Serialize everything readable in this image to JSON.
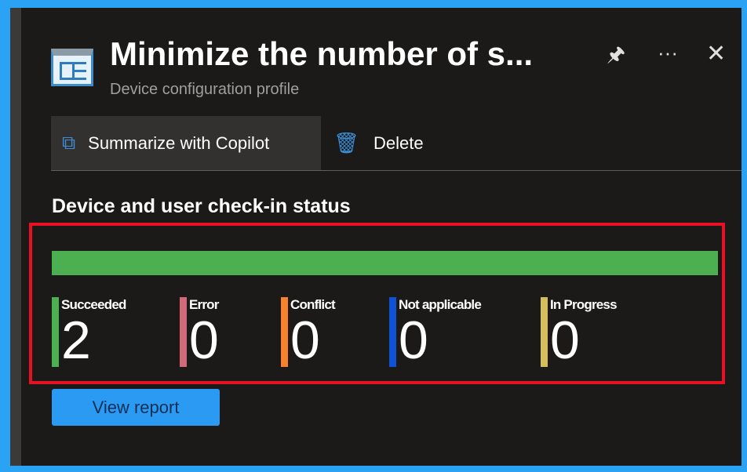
{
  "header": {
    "title": "Minimize the number of s...",
    "subtitle": "Device configuration profile"
  },
  "toolbar": {
    "copilot_label": "Summarize with Copilot",
    "delete_label": "Delete"
  },
  "section_title": "Device and user check-in status",
  "progress": {
    "succeeded_fraction": 1.0,
    "color": "#4caf50"
  },
  "stats": [
    {
      "label": "Succeeded",
      "value": "2",
      "color": "#4caf50"
    },
    {
      "label": "Error",
      "value": "0",
      "color": "#d16b7a"
    },
    {
      "label": "Conflict",
      "value": "0",
      "color": "#f7812d"
    },
    {
      "label": "Not applicable",
      "value": "0",
      "color": "#0f52d6"
    },
    {
      "label": "In Progress",
      "value": "0",
      "color": "#d6bd5b"
    }
  ],
  "view_report_label": "View report"
}
